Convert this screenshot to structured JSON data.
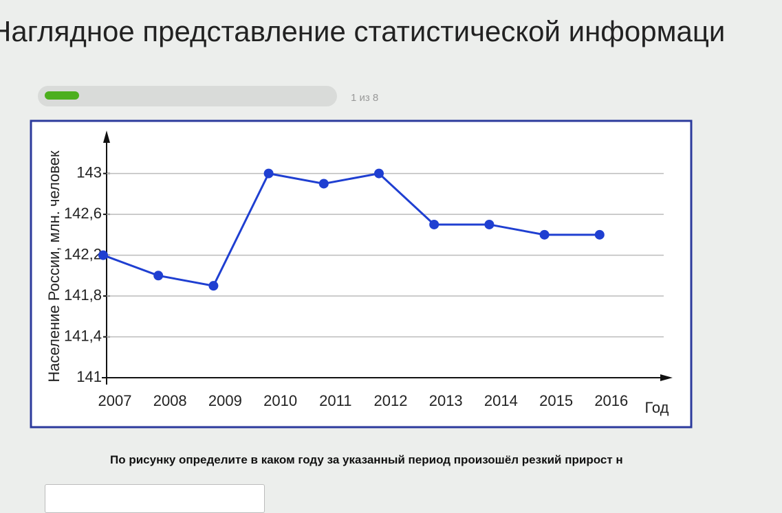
{
  "header": {
    "title": "Наглядное представление статистической информаци"
  },
  "progress": {
    "label": "1 из 8"
  },
  "chart_data": {
    "type": "line",
    "ylabel": "Население России, млн. человек",
    "xlabel": "Год",
    "categories": [
      "2007",
      "2008",
      "2009",
      "2010",
      "2011",
      "2012",
      "2013",
      "2014",
      "2015",
      "2016"
    ],
    "values": [
      142.2,
      142.0,
      141.9,
      143.0,
      142.9,
      143.0,
      142.5,
      142.5,
      142.4,
      142.4
    ],
    "color": "#1f3fd1",
    "ylim": [
      141,
      143.3
    ],
    "yticks": [
      141,
      {
        "value": 141.4,
        "label": "141,4"
      },
      {
        "value": 141.8,
        "label": "141,8"
      },
      {
        "value": 142.2,
        "label": "142,2"
      },
      {
        "value": 142.6,
        "label": "142,6"
      },
      143
    ],
    "grid": true
  },
  "question": {
    "text": "По рисунку определите в каком году за указанный период произошёл резкий прирост н"
  }
}
